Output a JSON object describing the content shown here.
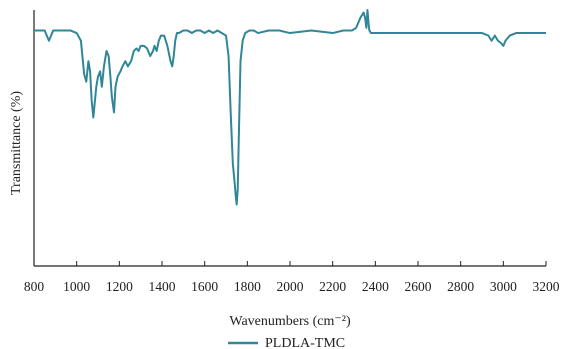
{
  "chart_data": {
    "type": "line",
    "title": "",
    "xlabel": "Wavenumbers (cm⁻²)",
    "ylabel": "Transmittance (%)",
    "xlim": [
      800,
      3200
    ],
    "ylim": [
      0,
      100
    ],
    "x_ticks": [
      "800",
      "1000",
      "1200",
      "1400",
      "1600",
      "1800",
      "2000",
      "2200",
      "2400",
      "2600",
      "2800",
      "3000",
      "3200"
    ],
    "grid": false,
    "legend_position": "bottom-center",
    "colors": {
      "series": "#2f8797"
    },
    "series": [
      {
        "name": "PLDLA-TMC",
        "x": [
          800,
          850,
          870,
          890,
          930,
          970,
          1000,
          1020,
          1035,
          1045,
          1055,
          1063,
          1070,
          1078,
          1085,
          1092,
          1100,
          1110,
          1118,
          1128,
          1140,
          1150,
          1158,
          1165,
          1175,
          1182,
          1192,
          1205,
          1215,
          1228,
          1240,
          1255,
          1268,
          1280,
          1290,
          1300,
          1315,
          1330,
          1345,
          1358,
          1365,
          1375,
          1385,
          1395,
          1410,
          1425,
          1440,
          1448,
          1455,
          1462,
          1470,
          1480,
          1500,
          1520,
          1540,
          1560,
          1580,
          1600,
          1620,
          1640,
          1660,
          1680,
          1700,
          1712,
          1722,
          1732,
          1740,
          1745,
          1750,
          1755,
          1760,
          1768,
          1778,
          1790,
          1810,
          1830,
          1850,
          1900,
          1950,
          2000,
          2100,
          2200,
          2250,
          2290,
          2310,
          2330,
          2345,
          2352,
          2358,
          2363,
          2368,
          2372,
          2380,
          2400,
          2500,
          2600,
          2700,
          2800,
          2900,
          2930,
          2945,
          2960,
          2975,
          2990,
          3000,
          3010,
          3030,
          3060,
          3100,
          3200
        ],
        "values": [
          92,
          92,
          88,
          92,
          92,
          92,
          91,
          88,
          75,
          72,
          80,
          76,
          65,
          58,
          64,
          70,
          74,
          76,
          70,
          78,
          84,
          82,
          74,
          66,
          60,
          70,
          74,
          76,
          78,
          80,
          78,
          80,
          84,
          85,
          84,
          86,
          86,
          85,
          82,
          84,
          86,
          84,
          88,
          90,
          90,
          86,
          80,
          78,
          82,
          88,
          91,
          91,
          92,
          92,
          91,
          92,
          92,
          91,
          92,
          91,
          92,
          91,
          90,
          82,
          60,
          40,
          33,
          28,
          24,
          30,
          50,
          80,
          88,
          91,
          92,
          92,
          91,
          92,
          92,
          91,
          92,
          91,
          92,
          92,
          93,
          97,
          99,
          97,
          93,
          100,
          95,
          92,
          91,
          91,
          91,
          91,
          91,
          91,
          91,
          90,
          88,
          90,
          88,
          87,
          86,
          88,
          90,
          91,
          91,
          91
        ]
      }
    ]
  }
}
